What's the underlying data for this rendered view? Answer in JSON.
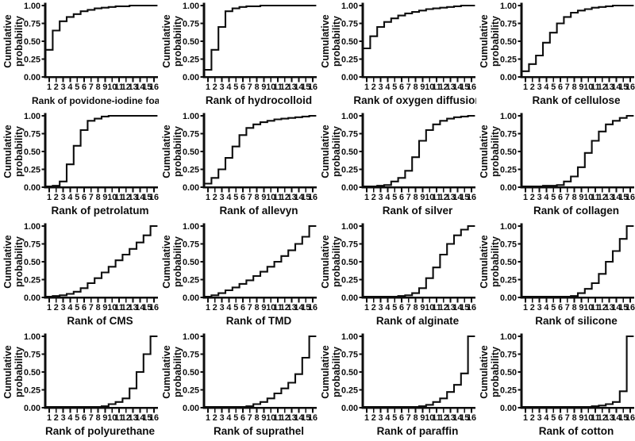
{
  "figure": {
    "ylabel_line1": "Cumulative",
    "ylabel_line2": "probability",
    "title_prefix": "Rank of",
    "ytick_labels": [
      "1.00",
      "0.75",
      "0.50",
      "0.25",
      "0.00"
    ],
    "xtick_labels": [
      "1",
      "2",
      "3",
      "4",
      "5",
      "6",
      "7",
      "8",
      "9",
      "10",
      "11",
      "12",
      "13",
      "14",
      "15",
      "16"
    ],
    "line_color": "#0d0d0d",
    "background_color": "#ffffff"
  },
  "chart_data": {
    "type": "line",
    "subtype": "step-ecdf",
    "grid": false,
    "legend": "none",
    "x": [
      1,
      2,
      3,
      4,
      5,
      6,
      7,
      8,
      9,
      10,
      11,
      12,
      13,
      14,
      15,
      16
    ],
    "xlim": [
      1,
      16
    ],
    "ylim": [
      0,
      1
    ],
    "yticks": [
      0.0,
      0.25,
      0.5,
      0.75,
      1.0
    ],
    "ylabel": "Cumulative probability",
    "panels": [
      {
        "name": "povidone-iodine foam",
        "title": "Rank of povidone-iodine foam",
        "values": [
          0.38,
          0.65,
          0.78,
          0.84,
          0.88,
          0.92,
          0.94,
          0.96,
          0.97,
          0.98,
          0.99,
          0.99,
          1.0,
          1.0,
          1.0,
          1.0
        ]
      },
      {
        "name": "hydrocolloid",
        "title": "Rank of hydrocolloid",
        "values": [
          0.1,
          0.38,
          0.7,
          0.92,
          0.96,
          0.98,
          0.99,
          0.99,
          1.0,
          1.0,
          1.0,
          1.0,
          1.0,
          1.0,
          1.0,
          1.0
        ]
      },
      {
        "name": "oxygen diffusion",
        "title": "Rank of oxygen diffusion",
        "values": [
          0.4,
          0.57,
          0.7,
          0.77,
          0.82,
          0.86,
          0.89,
          0.91,
          0.93,
          0.95,
          0.96,
          0.97,
          0.98,
          0.99,
          1.0,
          1.0
        ]
      },
      {
        "name": "cellulose",
        "title": "Rank of cellulose",
        "values": [
          0.08,
          0.18,
          0.3,
          0.48,
          0.62,
          0.75,
          0.84,
          0.9,
          0.93,
          0.95,
          0.97,
          0.98,
          0.99,
          1.0,
          1.0,
          1.0
        ]
      },
      {
        "name": "petrolatum",
        "title": "Rank of petrolatum",
        "values": [
          0.01,
          0.02,
          0.08,
          0.32,
          0.58,
          0.8,
          0.93,
          0.96,
          0.99,
          1.0,
          1.0,
          1.0,
          1.0,
          1.0,
          1.0,
          1.0
        ]
      },
      {
        "name": "allevyn",
        "title": "Rank of allevyn",
        "values": [
          0.05,
          0.13,
          0.25,
          0.41,
          0.57,
          0.73,
          0.83,
          0.88,
          0.91,
          0.93,
          0.95,
          0.96,
          0.97,
          0.98,
          0.99,
          1.0
        ]
      },
      {
        "name": "silver",
        "title": "Rank of silver",
        "values": [
          0.01,
          0.01,
          0.02,
          0.03,
          0.08,
          0.13,
          0.23,
          0.42,
          0.65,
          0.8,
          0.88,
          0.93,
          0.96,
          0.98,
          0.99,
          1.0
        ]
      },
      {
        "name": "collagen",
        "title": "Rank of collagen",
        "values": [
          0.01,
          0.01,
          0.01,
          0.02,
          0.02,
          0.03,
          0.08,
          0.15,
          0.28,
          0.48,
          0.65,
          0.78,
          0.88,
          0.93,
          0.97,
          1.0
        ]
      },
      {
        "name": "CMS",
        "title": "Rank of CMS",
        "values": [
          0.01,
          0.02,
          0.03,
          0.05,
          0.08,
          0.13,
          0.2,
          0.27,
          0.35,
          0.43,
          0.52,
          0.6,
          0.68,
          0.77,
          0.87,
          1.0
        ]
      },
      {
        "name": "TMD",
        "title": "Rank of TMD",
        "values": [
          0.01,
          0.03,
          0.06,
          0.1,
          0.14,
          0.19,
          0.24,
          0.3,
          0.36,
          0.43,
          0.5,
          0.58,
          0.66,
          0.75,
          0.85,
          1.0
        ]
      },
      {
        "name": "alginate",
        "title": "Rank of alginate",
        "values": [
          0.01,
          0.01,
          0.01,
          0.01,
          0.01,
          0.02,
          0.03,
          0.06,
          0.13,
          0.27,
          0.42,
          0.6,
          0.75,
          0.87,
          0.95,
          1.0
        ]
      },
      {
        "name": "silicone",
        "title": "Rank of silicone",
        "values": [
          0.01,
          0.01,
          0.01,
          0.01,
          0.01,
          0.01,
          0.01,
          0.02,
          0.06,
          0.12,
          0.2,
          0.33,
          0.5,
          0.65,
          0.82,
          1.0
        ]
      },
      {
        "name": "polyurethane",
        "title": "Rank of polyurethane",
        "values": [
          0.01,
          0.01,
          0.01,
          0.01,
          0.01,
          0.01,
          0.01,
          0.01,
          0.02,
          0.05,
          0.08,
          0.13,
          0.27,
          0.5,
          0.75,
          1.0
        ]
      },
      {
        "name": "suprathel",
        "title": "Rank of suprathel",
        "values": [
          0.01,
          0.01,
          0.01,
          0.01,
          0.01,
          0.01,
          0.02,
          0.05,
          0.08,
          0.13,
          0.2,
          0.27,
          0.35,
          0.47,
          0.7,
          1.0
        ]
      },
      {
        "name": "paraffin",
        "title": "Rank of paraffin",
        "values": [
          0.01,
          0.01,
          0.01,
          0.01,
          0.01,
          0.01,
          0.01,
          0.01,
          0.02,
          0.04,
          0.08,
          0.13,
          0.22,
          0.32,
          0.48,
          1.0
        ]
      },
      {
        "name": "cotton",
        "title": "Rank of cotton",
        "values": [
          0.01,
          0.01,
          0.01,
          0.01,
          0.01,
          0.01,
          0.01,
          0.01,
          0.01,
          0.01,
          0.02,
          0.03,
          0.05,
          0.08,
          0.23,
          1.0
        ]
      }
    ]
  }
}
